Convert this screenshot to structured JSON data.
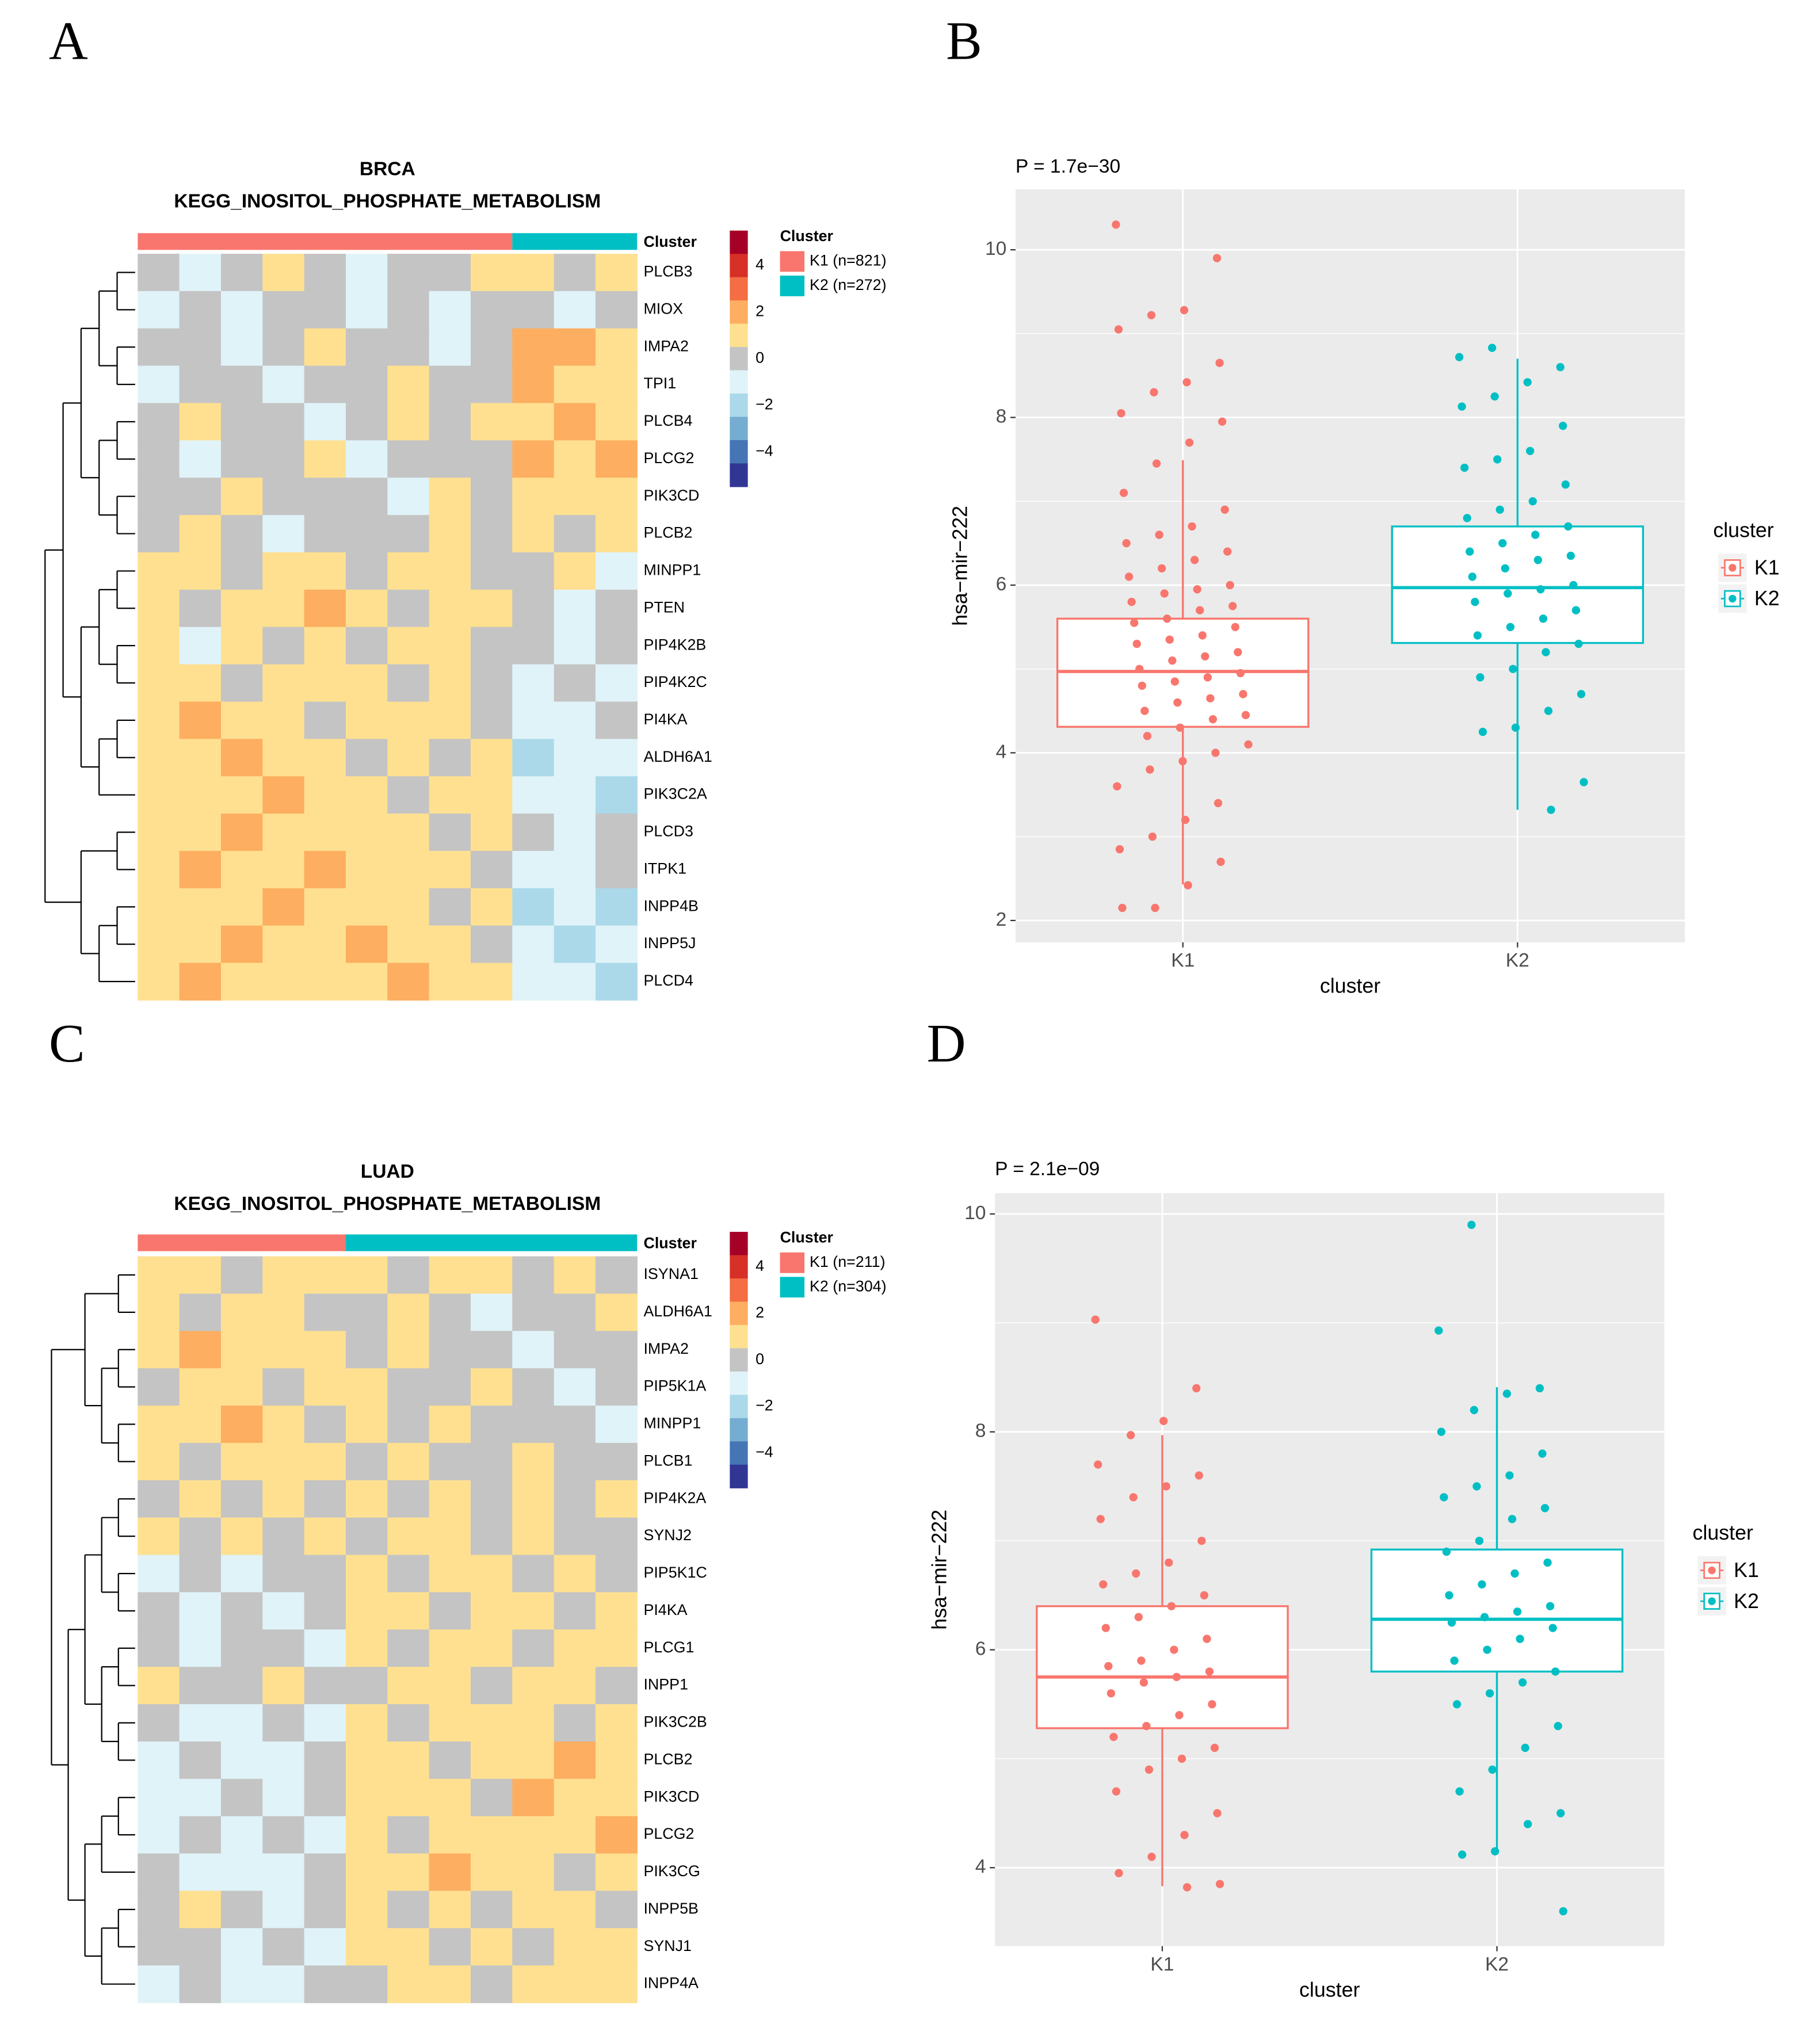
{
  "chart_data": [
    {
      "type": "heatmap",
      "panel": "A",
      "title": "BRCA",
      "subtitle": "KEGG_INOSITOL_PHOSPHATE_METABOLISM",
      "annotation_label": "Cluster",
      "legend_title": "Cluster",
      "rows": [
        "PLCB3",
        "MIOX",
        "IMPA2",
        "TPI1",
        "PLCB4",
        "PLCG2",
        "PIK3CD",
        "PLCB2",
        "MINPP1",
        "PTEN",
        "PIP4K2B",
        "PIP4K2C",
        "PI4KA",
        "ALDH6A1",
        "PIK3C2A",
        "PLCD3",
        "ITPK1",
        "INPP4B",
        "INPP5J",
        "PLCD4"
      ],
      "clusters": [
        {
          "name": "K1 (n=821)",
          "color": "#f8766d",
          "values": [
            [
              0,
              -1,
              0,
              1,
              0,
              -1,
              0,
              0,
              1
            ],
            [
              -1,
              0,
              -1,
              0,
              0,
              -1,
              0,
              -1,
              0
            ],
            [
              0,
              0,
              -1,
              0,
              1,
              0,
              0,
              -1,
              0
            ],
            [
              -1,
              0,
              0,
              -1,
              0,
              0,
              1,
              0,
              0
            ],
            [
              0,
              1,
              0,
              0,
              -1,
              0,
              1,
              0,
              1
            ],
            [
              0,
              -1,
              0,
              0,
              1,
              -1,
              0,
              0,
              0
            ],
            [
              0,
              0,
              1,
              0,
              0,
              0,
              -1,
              1,
              0
            ],
            [
              0,
              1,
              0,
              -1,
              0,
              0,
              0,
              1,
              0
            ],
            [
              1,
              1,
              0,
              1,
              1,
              0,
              1,
              1,
              0
            ],
            [
              1,
              0,
              1,
              1,
              2,
              1,
              0,
              1,
              1
            ],
            [
              1,
              -1,
              1,
              0,
              1,
              0,
              1,
              1,
              0
            ],
            [
              1,
              1,
              0,
              1,
              1,
              1,
              0,
              1,
              0
            ],
            [
              1,
              2,
              1,
              1,
              0,
              1,
              1,
              1,
              0
            ],
            [
              1,
              1,
              2,
              1,
              1,
              0,
              1,
              0,
              1
            ],
            [
              1,
              1,
              1,
              2,
              1,
              1,
              0,
              1,
              1
            ],
            [
              1,
              1,
              2,
              1,
              1,
              1,
              1,
              0,
              1
            ],
            [
              1,
              2,
              1,
              1,
              2,
              1,
              1,
              1,
              0
            ],
            [
              1,
              1,
              1,
              2,
              1,
              1,
              1,
              0,
              1
            ],
            [
              1,
              1,
              2,
              1,
              1,
              2,
              1,
              1,
              0
            ],
            [
              1,
              2,
              1,
              1,
              1,
              1,
              2,
              1,
              1
            ]
          ]
        },
        {
          "name": "K2 (n=272)",
          "color": "#00bfc4",
          "values": [
            [
              1,
              0,
              1
            ],
            [
              0,
              -1,
              0
            ],
            [
              2,
              2,
              1
            ],
            [
              2,
              1,
              1
            ],
            [
              1,
              2,
              1
            ],
            [
              2,
              1,
              2
            ],
            [
              1,
              1,
              1
            ],
            [
              1,
              0,
              1
            ],
            [
              0,
              1,
              -1
            ],
            [
              0,
              -1,
              0
            ],
            [
              0,
              -1,
              0
            ],
            [
              -1,
              0,
              -1
            ],
            [
              -1,
              -1,
              0
            ],
            [
              -2,
              -1,
              -1
            ],
            [
              -1,
              -1,
              -2
            ],
            [
              0,
              -1,
              0
            ],
            [
              -1,
              -1,
              0
            ],
            [
              -2,
              -1,
              -2
            ],
            [
              -1,
              -2,
              -1
            ],
            [
              -1,
              -1,
              -2
            ]
          ]
        }
      ],
      "colorscale": [
        {
          "value": 5,
          "color": "#a50026"
        },
        {
          "value": 4,
          "color": "#d73027"
        },
        {
          "value": 3,
          "color": "#f46d43"
        },
        {
          "value": 2,
          "color": "#fdae61"
        },
        {
          "value": 1,
          "color": "#fee090"
        },
        {
          "value": 0,
          "color": "#c4c4c4"
        },
        {
          "value": -1,
          "color": "#e0f3f8"
        },
        {
          "value": -2,
          "color": "#abd9e9"
        },
        {
          "value": -3,
          "color": "#74add1"
        },
        {
          "value": -4,
          "color": "#4575b4"
        },
        {
          "value": -5,
          "color": "#313695"
        }
      ],
      "colorbar_lim": [
        -5.5,
        5.5
      ],
      "colorbar_ticks": [
        4,
        2,
        0,
        {
          "value": -2,
          "label": "−2"
        },
        {
          "value": -4,
          "label": "−4"
        }
      ]
    },
    {
      "type": "box",
      "panel": "B",
      "annotation": "P = 1.7e−30",
      "xlabel": "cluster",
      "ylabel": "hsa−mir−222",
      "legend_title": "cluster",
      "categories": [
        "K1",
        "K2"
      ],
      "colors": [
        "#f8766d",
        "#00bfc4"
      ],
      "whislo": [
        2.43,
        3.32
      ],
      "q1": [
        4.31,
        5.31
      ],
      "med": [
        4.97,
        5.97
      ],
      "q3": [
        5.6,
        6.7
      ],
      "whishi": [
        7.49,
        8.7
      ],
      "points": [
        [
          10.3,
          9.9,
          9.28,
          9.22,
          9.05,
          8.65,
          8.42,
          8.3,
          8.05,
          7.95,
          7.7,
          7.45,
          7.1,
          6.9,
          6.7,
          6.6,
          6.5,
          6.4,
          6.3,
          6.2,
          6.1,
          6.0,
          5.95,
          5.9,
          5.8,
          5.75,
          5.7,
          5.6,
          5.55,
          5.5,
          5.4,
          5.35,
          5.3,
          5.2,
          5.15,
          5.1,
          5.0,
          4.95,
          4.9,
          4.85,
          4.8,
          4.7,
          4.65,
          4.6,
          4.5,
          4.45,
          4.4,
          4.3,
          4.2,
          4.1,
          4.0,
          3.9,
          3.8,
          3.6,
          3.4,
          3.2,
          3.0,
          2.85,
          2.7,
          2.42,
          2.15,
          2.15
        ],
        [
          8.83,
          8.72,
          8.6,
          8.42,
          8.25,
          8.13,
          7.9,
          7.6,
          7.5,
          7.4,
          7.2,
          7.0,
          6.9,
          6.8,
          6.7,
          6.6,
          6.5,
          6.4,
          6.35,
          6.3,
          6.2,
          6.1,
          6.0,
          5.95,
          5.9,
          5.8,
          5.7,
          5.6,
          5.5,
          5.4,
          5.3,
          5.2,
          5.0,
          4.9,
          4.7,
          4.5,
          4.3,
          4.25,
          3.65,
          3.32
        ]
      ],
      "ylim": [
        1.74,
        10.72
      ],
      "yticks": [
        2,
        4,
        6,
        8,
        10
      ]
    },
    {
      "type": "heatmap",
      "panel": "C",
      "title": "LUAD",
      "subtitle": "KEGG_INOSITOL_PHOSPHATE_METABOLISM",
      "annotation_label": "Cluster",
      "legend_title": "Cluster",
      "rows": [
        "ISYNA1",
        "ALDH6A1",
        "IMPA2",
        "PIP5K1A",
        "MINPP1",
        "PLCB1",
        "PIP4K2A",
        "SYNJ2",
        "PIP5K1C",
        "PI4KA",
        "PLCG1",
        "INPP1",
        "PIK3C2B",
        "PLCB2",
        "PIK3CD",
        "PLCG2",
        "PIK3CG",
        "INPP5B",
        "SYNJ1",
        "INPP4A"
      ],
      "clusters": [
        {
          "name": "K1 (n=211)",
          "color": "#f8766d",
          "values": [
            [
              1,
              1,
              0,
              1,
              1
            ],
            [
              1,
              0,
              1,
              1,
              0
            ],
            [
              1,
              2,
              1,
              1,
              1
            ],
            [
              0,
              1,
              1,
              0,
              1
            ],
            [
              1,
              1,
              2,
              1,
              0
            ],
            [
              1,
              0,
              1,
              1,
              1
            ],
            [
              0,
              1,
              0,
              1,
              0
            ],
            [
              1,
              0,
              1,
              0,
              1
            ],
            [
              -1,
              0,
              -1,
              0,
              0
            ],
            [
              0,
              -1,
              0,
              -1,
              0
            ],
            [
              0,
              -1,
              0,
              0,
              -1
            ],
            [
              1,
              0,
              0,
              1,
              0
            ],
            [
              0,
              -1,
              -1,
              0,
              -1
            ],
            [
              -1,
              0,
              -1,
              -1,
              0
            ],
            [
              -1,
              -1,
              0,
              -1,
              0
            ],
            [
              -1,
              0,
              -1,
              0,
              -1
            ],
            [
              0,
              -1,
              -1,
              -1,
              0
            ],
            [
              0,
              1,
              0,
              -1,
              0
            ],
            [
              0,
              0,
              -1,
              0,
              -1
            ],
            [
              -1,
              0,
              -1,
              -1,
              0
            ]
          ]
        },
        {
          "name": "K2 (n=304)",
          "color": "#00bfc4",
          "values": [
            [
              1,
              0,
              1,
              1,
              0,
              1,
              0
            ],
            [
              0,
              1,
              0,
              -1,
              0,
              0,
              1
            ],
            [
              0,
              1,
              0,
              0,
              -1,
              0,
              0
            ],
            [
              1,
              0,
              0,
              1,
              0,
              -1,
              0
            ],
            [
              1,
              0,
              1,
              0,
              0,
              0,
              -1
            ],
            [
              0,
              1,
              0,
              0,
              1,
              0,
              0
            ],
            [
              1,
              0,
              1,
              0,
              1,
              0,
              1
            ],
            [
              0,
              1,
              1,
              0,
              1,
              0,
              0
            ],
            [
              1,
              0,
              1,
              1,
              0,
              1,
              0
            ],
            [
              1,
              1,
              0,
              1,
              1,
              0,
              1
            ],
            [
              1,
              0,
              1,
              1,
              0,
              1,
              1
            ],
            [
              0,
              1,
              1,
              0,
              1,
              1,
              0
            ],
            [
              1,
              0,
              1,
              1,
              1,
              0,
              1
            ],
            [
              1,
              1,
              0,
              1,
              1,
              2,
              1
            ],
            [
              1,
              1,
              1,
              0,
              2,
              1,
              1
            ],
            [
              1,
              0,
              1,
              1,
              1,
              1,
              2
            ],
            [
              1,
              1,
              2,
              1,
              1,
              0,
              1
            ],
            [
              1,
              0,
              1,
              0,
              1,
              1,
              0
            ],
            [
              1,
              1,
              0,
              1,
              0,
              1,
              1
            ],
            [
              0,
              1,
              1,
              0,
              1,
              1,
              1
            ]
          ]
        }
      ],
      "colorscale": [
        {
          "value": 5,
          "color": "#a50026"
        },
        {
          "value": 4,
          "color": "#d73027"
        },
        {
          "value": 3,
          "color": "#f46d43"
        },
        {
          "value": 2,
          "color": "#fdae61"
        },
        {
          "value": 1,
          "color": "#fee090"
        },
        {
          "value": 0,
          "color": "#c4c4c4"
        },
        {
          "value": -1,
          "color": "#e0f3f8"
        },
        {
          "value": -2,
          "color": "#abd9e9"
        },
        {
          "value": -3,
          "color": "#74add1"
        },
        {
          "value": -4,
          "color": "#4575b4"
        },
        {
          "value": -5,
          "color": "#313695"
        }
      ],
      "colorbar_lim": [
        -5.5,
        5.5
      ],
      "colorbar_ticks": [
        4,
        2,
        0,
        {
          "value": -2,
          "label": "−2"
        },
        {
          "value": -4,
          "label": "−4"
        }
      ]
    },
    {
      "type": "box",
      "panel": "D",
      "annotation": "P = 2.1e−09",
      "xlabel": "cluster",
      "ylabel": "hsa−mir−222",
      "legend_title": "cluster",
      "categories": [
        "K1",
        "K2"
      ],
      "colors": [
        "#f8766d",
        "#00bfc4"
      ],
      "whislo": [
        3.83,
        4.12
      ],
      "q1": [
        5.28,
        5.8
      ],
      "med": [
        5.75,
        6.28
      ],
      "q3": [
        6.4,
        6.92
      ],
      "whishi": [
        7.97,
        8.41
      ],
      "points": [
        [
          9.03,
          8.4,
          8.1,
          7.97,
          7.7,
          7.6,
          7.5,
          7.4,
          7.2,
          7.0,
          6.8,
          6.7,
          6.6,
          6.5,
          6.4,
          6.3,
          6.2,
          6.1,
          6.0,
          5.9,
          5.85,
          5.8,
          5.75,
          5.7,
          5.6,
          5.5,
          5.4,
          5.3,
          5.2,
          5.1,
          5.0,
          4.9,
          4.7,
          4.5,
          4.3,
          4.1,
          3.95,
          3.85,
          3.82
        ],
        [
          9.9,
          8.93,
          8.4,
          8.35,
          8.2,
          8.0,
          7.8,
          7.6,
          7.5,
          7.4,
          7.3,
          7.2,
          7.0,
          6.9,
          6.8,
          6.7,
          6.6,
          6.5,
          6.4,
          6.35,
          6.3,
          6.25,
          6.2,
          6.1,
          6.0,
          5.9,
          5.8,
          5.7,
          5.6,
          5.5,
          5.3,
          5.1,
          4.9,
          4.7,
          4.5,
          4.4,
          4.15,
          4.12,
          3.6
        ]
      ],
      "ylim": [
        3.28,
        10.19
      ],
      "yticks": [
        4,
        6,
        8,
        10
      ]
    }
  ]
}
